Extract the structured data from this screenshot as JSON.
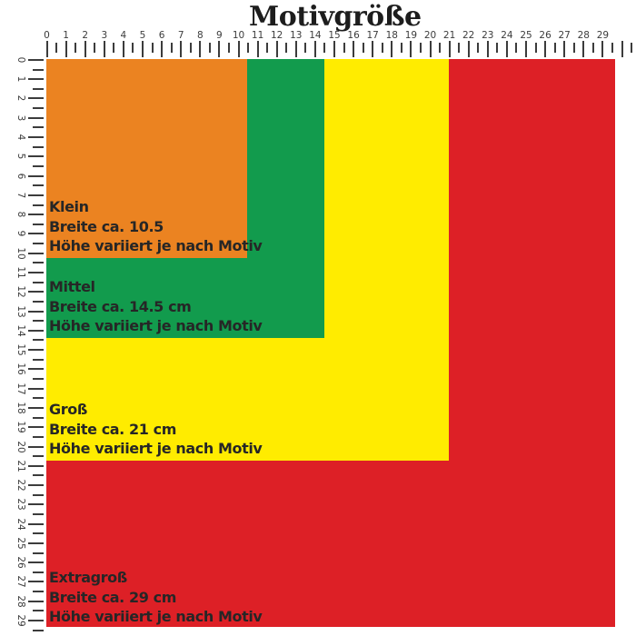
{
  "title": "Motivgröße",
  "colors": {
    "orange": "#EB8321",
    "green": "#129B4D",
    "yellow": "#FFEC00",
    "red": "#DD2026",
    "ink": "#262626",
    "ruler": "#3C3C3C",
    "background": "#FFFFFF"
  },
  "ruler_labels": [
    "0",
    "1",
    "2",
    "3",
    "4",
    "5",
    "6",
    "7",
    "8",
    "9",
    "10",
    "11",
    "12",
    "13",
    "14",
    "15",
    "16",
    "17",
    "18",
    "19",
    "20",
    "21",
    "22",
    "23",
    "24",
    "25",
    "26",
    "27",
    "28",
    "29"
  ],
  "sizes": [
    {
      "name": "Klein",
      "width_line": "Breite ca. 10.5",
      "height_line": "Höhe variiert je nach Motiv",
      "width_cm": 10.5,
      "color": "orange"
    },
    {
      "name": "Mittel",
      "width_line": "Breite ca. 14.5 cm",
      "height_line": "Höhe variiert je nach Motiv",
      "width_cm": 14.5,
      "color": "green"
    },
    {
      "name": "Groß",
      "width_line": "Breite ca. 21 cm",
      "height_line": "Höhe variiert je nach Motiv",
      "width_cm": 21,
      "color": "yellow"
    },
    {
      "name": "Extragroß",
      "width_line": "Breite ca. 29 cm",
      "height_line": "Höhe variiert je nach Motiv",
      "width_cm": 29,
      "color": "red"
    }
  ]
}
